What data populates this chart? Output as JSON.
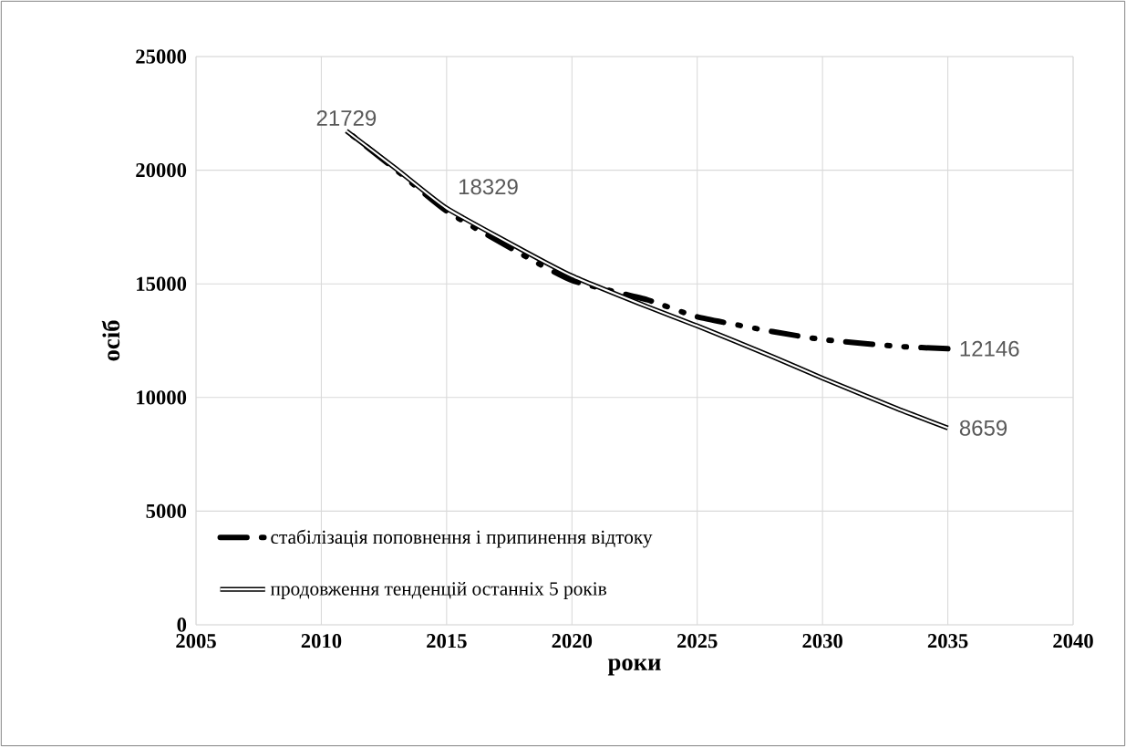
{
  "chart_data": {
    "type": "line",
    "xlabel": "роки",
    "ylabel": "осіб",
    "xlim": [
      2005,
      2040
    ],
    "xticks": [
      2005,
      2010,
      2015,
      2020,
      2025,
      2030,
      2035,
      2040
    ],
    "ylim": [
      0,
      25000
    ],
    "yticks": [
      0,
      5000,
      10000,
      15000,
      20000,
      25000
    ],
    "grid": true,
    "legend": "bottom left",
    "series": [
      {
        "name": "стабілізація поповнення і припинення відтоку",
        "color": "#000000",
        "line_style": "dashed",
        "x": [
          2011,
          2013,
          2015,
          2018,
          2020,
          2023,
          2025,
          2028,
          2030,
          2033,
          2035
        ],
        "values": [
          21729,
          20000,
          18200,
          16300,
          15150,
          14300,
          13550,
          12900,
          12550,
          12250,
          12146
        ],
        "value_labels": [
          null,
          null,
          null,
          null,
          null,
          null,
          null,
          null,
          null,
          null,
          "12146"
        ]
      },
      {
        "name": "продовження тенденцій останніх  5 років",
        "color": "#000000",
        "line_style": "solid",
        "x": [
          2011,
          2013,
          2015,
          2018,
          2020,
          2023,
          2025,
          2028,
          2030,
          2033,
          2035
        ],
        "values": [
          21729,
          20050,
          18329,
          16500,
          15350,
          14000,
          13150,
          11800,
          10850,
          9500,
          8659
        ],
        "value_labels": [
          "21729",
          null,
          "18329",
          null,
          null,
          null,
          null,
          null,
          null,
          null,
          "8659"
        ]
      }
    ]
  }
}
